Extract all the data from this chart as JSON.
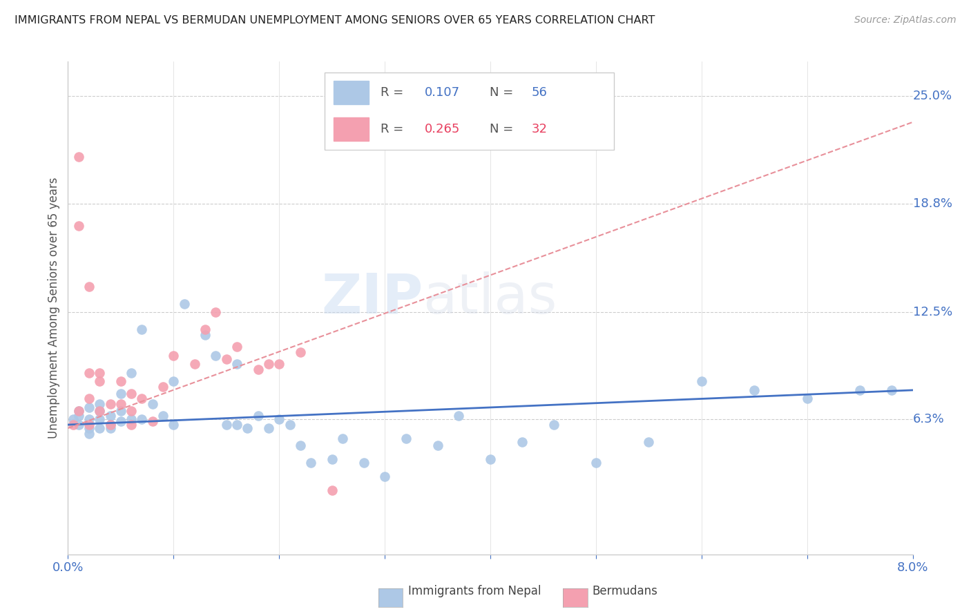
{
  "title": "IMMIGRANTS FROM NEPAL VS BERMUDAN UNEMPLOYMENT AMONG SENIORS OVER 65 YEARS CORRELATION CHART",
  "source": "Source: ZipAtlas.com",
  "ylabel": "Unemployment Among Seniors over 65 years",
  "xlim": [
    0.0,
    0.08
  ],
  "ylim": [
    -0.015,
    0.27
  ],
  "yticks_right": [
    0.063,
    0.125,
    0.188,
    0.25
  ],
  "ytick_right_labels": [
    "6.3%",
    "12.5%",
    "18.8%",
    "25.0%"
  ],
  "color_nepal": "#adc8e6",
  "color_bermuda": "#f4a0b0",
  "color_nepal_line": "#4472c4",
  "color_bermuda_line": "#e8909a",
  "watermark": "ZIPatlas",
  "nepal_x": [
    0.0005,
    0.001,
    0.001,
    0.001,
    0.002,
    0.002,
    0.002,
    0.002,
    0.003,
    0.003,
    0.003,
    0.003,
    0.004,
    0.004,
    0.004,
    0.005,
    0.005,
    0.005,
    0.006,
    0.006,
    0.007,
    0.007,
    0.008,
    0.009,
    0.01,
    0.01,
    0.011,
    0.013,
    0.014,
    0.015,
    0.016,
    0.016,
    0.017,
    0.018,
    0.019,
    0.02,
    0.021,
    0.022,
    0.023,
    0.025,
    0.026,
    0.028,
    0.03,
    0.032,
    0.035,
    0.037,
    0.04,
    0.043,
    0.046,
    0.05,
    0.055,
    0.06,
    0.065,
    0.07,
    0.075,
    0.078
  ],
  "nepal_y": [
    0.063,
    0.065,
    0.068,
    0.06,
    0.07,
    0.063,
    0.055,
    0.058,
    0.068,
    0.072,
    0.063,
    0.058,
    0.065,
    0.058,
    0.06,
    0.078,
    0.062,
    0.068,
    0.09,
    0.063,
    0.115,
    0.063,
    0.072,
    0.065,
    0.085,
    0.06,
    0.13,
    0.112,
    0.1,
    0.06,
    0.095,
    0.06,
    0.058,
    0.065,
    0.058,
    0.063,
    0.06,
    0.048,
    0.038,
    0.04,
    0.052,
    0.038,
    0.03,
    0.052,
    0.048,
    0.065,
    0.04,
    0.05,
    0.06,
    0.038,
    0.05,
    0.085,
    0.08,
    0.075,
    0.08,
    0.08
  ],
  "bermuda_x": [
    0.0005,
    0.001,
    0.001,
    0.001,
    0.002,
    0.002,
    0.002,
    0.002,
    0.003,
    0.003,
    0.003,
    0.004,
    0.004,
    0.005,
    0.005,
    0.006,
    0.006,
    0.006,
    0.007,
    0.008,
    0.009,
    0.01,
    0.012,
    0.013,
    0.014,
    0.015,
    0.016,
    0.018,
    0.019,
    0.02,
    0.022,
    0.025
  ],
  "bermuda_y": [
    0.06,
    0.215,
    0.175,
    0.068,
    0.14,
    0.09,
    0.075,
    0.06,
    0.09,
    0.085,
    0.068,
    0.072,
    0.06,
    0.085,
    0.072,
    0.078,
    0.068,
    0.06,
    0.075,
    0.062,
    0.082,
    0.1,
    0.095,
    0.115,
    0.125,
    0.098,
    0.105,
    0.092,
    0.095,
    0.095,
    0.102,
    0.022
  ],
  "nepal_trend_x": [
    0.0,
    0.08
  ],
  "nepal_trend_y": [
    0.06,
    0.08
  ],
  "bermuda_trend_x": [
    0.0,
    0.08
  ],
  "bermuda_trend_y": [
    0.058,
    0.235
  ]
}
